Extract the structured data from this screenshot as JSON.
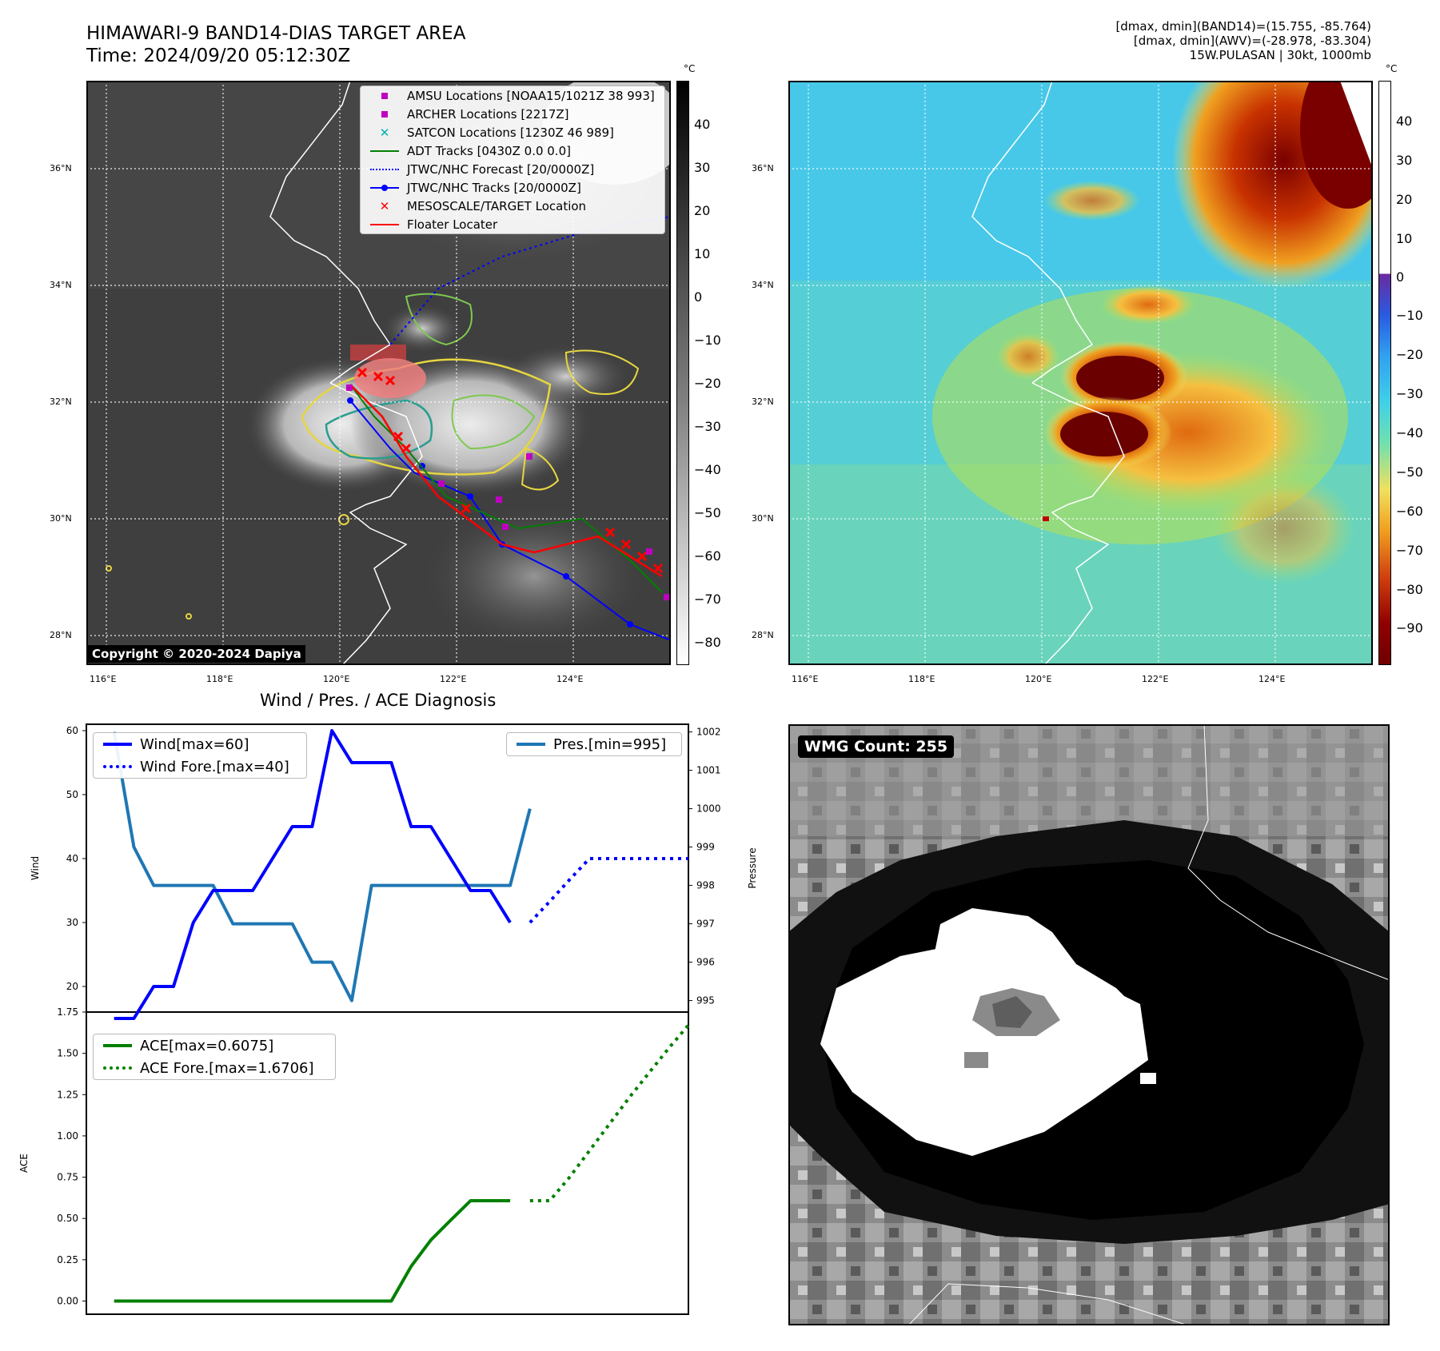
{
  "header": {
    "title_line1": "HIMAWARI-9 BAND14-DIAS TARGET AREA",
    "title_line2": "Time: 2024/09/20 05:12:30Z",
    "meta_line1": "[dmax, dmin](BAND14)=(15.755, -85.764)",
    "meta_line2": "[dmax, dmin](AWV)=(-28.978, -83.304)",
    "meta_line3": "15W.PULASAN | 30kt, 1000mb"
  },
  "map_left": {
    "copyright": "Copyright © 2020-2024 Dapiya",
    "colorbar_unit": "°C",
    "colorbar_ticks": [
      "40",
      "30",
      "20",
      "10",
      "0",
      "−10",
      "−20",
      "−30",
      "−40",
      "−50",
      "−60",
      "−70",
      "−80"
    ],
    "legend": [
      {
        "label": "AMSU Locations [NOAA15/1021Z 38 993]",
        "color": "#c000c0",
        "icon": "square-marker"
      },
      {
        "label": "ARCHER Locations [2217Z]",
        "color": "#c000c0",
        "icon": "square-marker"
      },
      {
        "label": "SATCON Locations [1230Z 46 989]",
        "color": "#00b0b0",
        "icon": "x-marker"
      },
      {
        "label": "ADT Tracks [0430Z 0.0 0.0]",
        "color": "#008000",
        "icon": "solid-line"
      },
      {
        "label": "JTWC/NHC Forecast [20/0000Z]",
        "color": "#0000ff",
        "icon": "dotted-line"
      },
      {
        "label": "JTWC/NHC Tracks [20/0000Z]",
        "color": "#0000ff",
        "icon": "line-dot"
      },
      {
        "label": "MESOSCALE/TARGET Location",
        "color": "#ff0000",
        "icon": "x-marker"
      },
      {
        "label": "Floater Locater",
        "color": "#ff0000",
        "icon": "solid-line"
      }
    ]
  },
  "map_right": {
    "colorbar_unit": "°C",
    "colorbar_ticks": [
      "40",
      "30",
      "20",
      "10",
      "0",
      "−10",
      "−20",
      "−30",
      "−40",
      "−50",
      "−60",
      "−70",
      "−80",
      "−90"
    ]
  },
  "map_axes": {
    "lat_labels": [
      "36°N",
      "34°N",
      "32°N",
      "30°N",
      "28°N"
    ],
    "lon_labels": [
      "116°E",
      "118°E",
      "120°E",
      "122°E",
      "124°E"
    ]
  },
  "panel_wmg": {
    "label": "WMG Count: 255"
  },
  "chart_data": [
    {
      "type": "line",
      "title": "Wind / Pres. / ACE Diagnosis",
      "ylabel": "Wind",
      "y2label": "Pressure",
      "ylim": [
        16,
        61
      ],
      "y2lim": [
        994.7,
        1002.2
      ],
      "yticks": [
        20,
        30,
        40,
        50,
        60
      ],
      "y2ticks": [
        995,
        996,
        997,
        998,
        999,
        1000,
        1001,
        1002
      ],
      "xlim": [
        -1.4,
        29
      ],
      "series": [
        {
          "name": "Wind[max=60]",
          "color": "#0000ff",
          "style": "solid",
          "x": [
            0,
            1,
            2,
            3,
            4,
            5,
            6,
            7,
            8,
            9,
            10,
            11,
            12,
            13,
            14,
            15,
            16,
            17,
            18,
            19,
            20
          ],
          "values": [
            15,
            15,
            20,
            20,
            30,
            35,
            35,
            35,
            40,
            45,
            45,
            60,
            55,
            55,
            55,
            45,
            45,
            40,
            35,
            35,
            30
          ]
        },
        {
          "name": "Wind Fore.[max=40]",
          "color": "#0000ff",
          "style": "dotted",
          "x": [
            21,
            22,
            23,
            24,
            25,
            26,
            27,
            28,
            29
          ],
          "values": [
            30,
            33.3,
            36.7,
            40,
            40,
            40,
            40,
            40,
            40
          ]
        },
        {
          "name": "Pres.[min=995]",
          "color": "#1f77b4",
          "style": "solid",
          "axis": "right",
          "x": [
            0,
            1,
            2,
            3,
            4,
            5,
            6,
            7,
            8,
            9,
            10,
            11,
            12,
            13,
            14,
            15,
            16,
            17,
            18,
            19,
            20,
            21
          ],
          "values": [
            1002,
            999,
            998,
            998,
            998,
            998,
            997,
            997,
            997,
            997,
            996,
            996,
            995,
            998,
            998,
            998,
            998,
            998,
            998,
            998,
            998,
            1000
          ]
        }
      ]
    },
    {
      "type": "line",
      "ylabel": "ACE",
      "ylim": [
        -0.08,
        1.75
      ],
      "yticks": [
        0.0,
        0.25,
        0.5,
        0.75,
        1.0,
        1.25,
        1.5,
        1.75
      ],
      "ytick_labels": [
        "0.00",
        "0.25",
        "0.50",
        "0.75",
        "1.00",
        "1.25",
        "1.50",
        "1.75"
      ],
      "xlim": [
        -1.4,
        29
      ],
      "series": [
        {
          "name": "ACE[max=0.6075]",
          "color": "#008000",
          "style": "solid",
          "x": [
            0,
            1,
            2,
            3,
            4,
            5,
            6,
            7,
            8,
            9,
            10,
            11,
            12,
            13,
            14,
            15,
            16,
            17,
            18,
            19,
            20
          ],
          "values": [
            0,
            0,
            0,
            0,
            0,
            0,
            0,
            0,
            0,
            0,
            0,
            0,
            0,
            0,
            0,
            0.21,
            0.37,
            0.49,
            0.6075,
            0.6075,
            0.6075
          ]
        },
        {
          "name": "ACE Fore.[max=1.6706]",
          "color": "#008000",
          "style": "dotted",
          "x": [
            21,
            22,
            23,
            24,
            25,
            26,
            27,
            28,
            29
          ],
          "values": [
            0.6075,
            0.6075,
            0.75,
            0.91,
            1.07,
            1.23,
            1.38,
            1.53,
            1.6706
          ]
        }
      ]
    }
  ]
}
